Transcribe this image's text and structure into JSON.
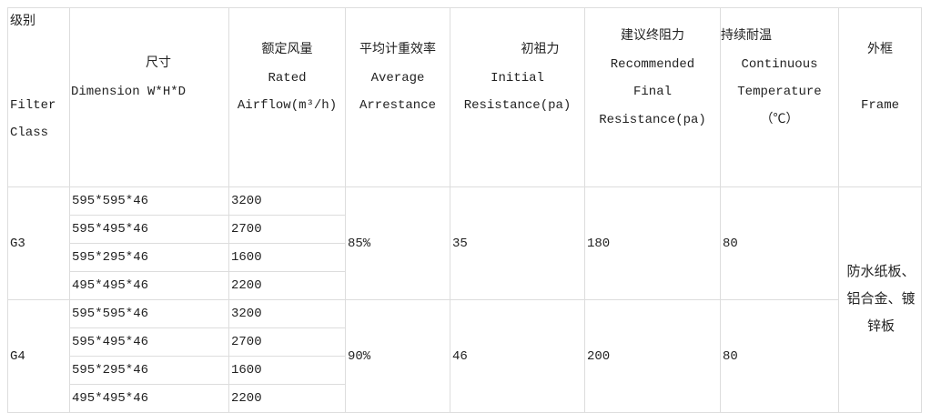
{
  "header": {
    "filter_class": {
      "zh": "级别",
      "en1": "Filter",
      "en2": "Class"
    },
    "dimension": {
      "zh": "尺寸",
      "en": "Dimension W*H*D"
    },
    "airflow": {
      "zh": "额定风量",
      "en1": "Rated",
      "en2": "Airflow(m³/h)"
    },
    "arrestance": {
      "zh": "平均计重效率",
      "en1": "Average",
      "en2": "Arrestance"
    },
    "initial": {
      "zh": "初祖力",
      "en1": "Initial",
      "en2": "Resistance(pa)"
    },
    "final": {
      "zh": "建议终阻力",
      "en1": "Recommended",
      "en2": "Final",
      "en3": "Resistance(pa)"
    },
    "temperature": {
      "zh": "持续耐温",
      "en1": "Continuous",
      "en2": "Temperature",
      "en3": "（℃）"
    },
    "frame": {
      "zh": "外框",
      "en": "Frame"
    }
  },
  "groups": [
    {
      "class": "G3",
      "arrestance": "85%",
      "initial": "35",
      "final": "180",
      "temperature": "80",
      "rows": [
        {
          "dimension": "595*595*46",
          "airflow": "3200"
        },
        {
          "dimension": "595*495*46",
          "airflow": "2700"
        },
        {
          "dimension": "595*295*46",
          "airflow": "1600"
        },
        {
          "dimension": "495*495*46",
          "airflow": "2200"
        }
      ]
    },
    {
      "class": "G4",
      "arrestance": "90%",
      "initial": "46",
      "final": "200",
      "temperature": "80",
      "rows": [
        {
          "dimension": "595*595*46",
          "airflow": "3200"
        },
        {
          "dimension": "595*495*46",
          "airflow": "2700"
        },
        {
          "dimension": "595*295*46",
          "airflow": "1600"
        },
        {
          "dimension": "495*495*46",
          "airflow": "2200"
        }
      ]
    }
  ],
  "frame": {
    "line1": "防水纸板、",
    "line2": "铝合金、镀",
    "line3": "锌板"
  }
}
